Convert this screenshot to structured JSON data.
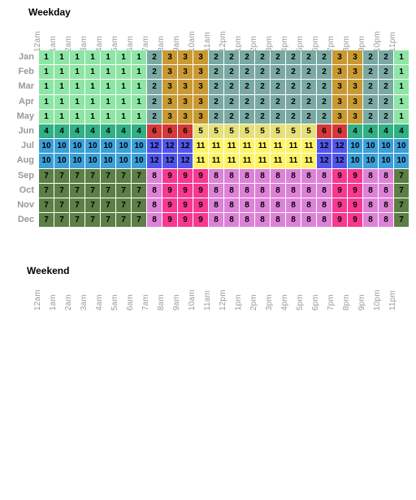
{
  "weekday": {
    "title": "Weekday",
    "months": [
      "Jan",
      "Feb",
      "Mar",
      "Apr",
      "May",
      "Jun",
      "Jul",
      "Aug",
      "Sep",
      "Oct",
      "Nov",
      "Dec"
    ],
    "hours": [
      "12am",
      "1am",
      "2am",
      "3am",
      "4am",
      "5am",
      "6am",
      "7am",
      "8am",
      "9am",
      "10am",
      "11am",
      "12pm",
      "1pm",
      "2pm",
      "3pm",
      "4pm",
      "5pm",
      "6pm",
      "7pm",
      "8pm",
      "9pm",
      "10pm",
      "11pm"
    ],
    "rows": [
      [
        1,
        1,
        1,
        1,
        1,
        1,
        1,
        2,
        3,
        3,
        3,
        2,
        2,
        2,
        2,
        2,
        2,
        2,
        2,
        3,
        3,
        2,
        2,
        1
      ],
      [
        1,
        1,
        1,
        1,
        1,
        1,
        1,
        2,
        3,
        3,
        3,
        2,
        2,
        2,
        2,
        2,
        2,
        2,
        2,
        3,
        3,
        2,
        2,
        1
      ],
      [
        1,
        1,
        1,
        1,
        1,
        1,
        1,
        2,
        3,
        3,
        3,
        2,
        2,
        2,
        2,
        2,
        2,
        2,
        2,
        3,
        3,
        2,
        2,
        1
      ],
      [
        1,
        1,
        1,
        1,
        1,
        1,
        1,
        2,
        3,
        3,
        3,
        2,
        2,
        2,
        2,
        2,
        2,
        2,
        2,
        3,
        3,
        2,
        2,
        1
      ],
      [
        1,
        1,
        1,
        1,
        1,
        1,
        1,
        2,
        3,
        3,
        3,
        2,
        2,
        2,
        2,
        2,
        2,
        2,
        2,
        3,
        3,
        2,
        2,
        1
      ],
      [
        4,
        4,
        4,
        4,
        4,
        4,
        4,
        6,
        6,
        6,
        5,
        5,
        5,
        5,
        5,
        5,
        5,
        5,
        6,
        6,
        4,
        4,
        4,
        4
      ],
      [
        10,
        10,
        10,
        10,
        10,
        10,
        10,
        12,
        12,
        12,
        11,
        11,
        11,
        11,
        11,
        11,
        11,
        11,
        12,
        12,
        10,
        10,
        10,
        10
      ],
      [
        10,
        10,
        10,
        10,
        10,
        10,
        10,
        12,
        12,
        12,
        11,
        11,
        11,
        11,
        11,
        11,
        11,
        11,
        12,
        12,
        10,
        10,
        10,
        10
      ],
      [
        7,
        7,
        7,
        7,
        7,
        7,
        7,
        8,
        9,
        9,
        9,
        8,
        8,
        8,
        8,
        8,
        8,
        8,
        8,
        9,
        9,
        8,
        8,
        7
      ],
      [
        7,
        7,
        7,
        7,
        7,
        7,
        7,
        8,
        9,
        9,
        9,
        8,
        8,
        8,
        8,
        8,
        8,
        8,
        8,
        9,
        9,
        8,
        8,
        7
      ],
      [
        7,
        7,
        7,
        7,
        7,
        7,
        7,
        8,
        9,
        9,
        9,
        8,
        8,
        8,
        8,
        8,
        8,
        8,
        8,
        9,
        9,
        8,
        8,
        7
      ],
      [
        7,
        7,
        7,
        7,
        7,
        7,
        7,
        8,
        9,
        9,
        9,
        8,
        8,
        8,
        8,
        8,
        8,
        8,
        8,
        9,
        9,
        8,
        8,
        7
      ]
    ]
  },
  "weekend": {
    "title": "Weekend",
    "hours": [
      "12am",
      "1am",
      "2am",
      "3am",
      "4am",
      "5am",
      "6am",
      "7am",
      "8am",
      "9am",
      "10am",
      "11am",
      "12pm",
      "1pm",
      "2pm",
      "3pm",
      "4pm",
      "5pm",
      "6pm",
      "7pm",
      "8pm",
      "9pm",
      "10pm",
      "11pm"
    ]
  },
  "colors": {
    "1": "#8ee6a6",
    "2": "#7aa9a4",
    "3": "#c99a33",
    "4": "#31b085",
    "5": "#e6e07a",
    "6": "#d43a3a",
    "7": "#5b7f45",
    "8": "#de82d8",
    "9": "#f7398f",
    "10": "#3b9fd9",
    "11": "#fff468",
    "12": "#5156ea"
  }
}
